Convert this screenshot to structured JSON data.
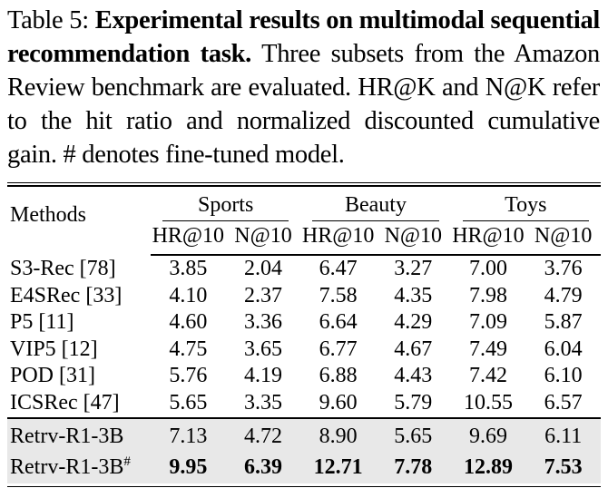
{
  "caption": {
    "label": "Table 5:",
    "bold_text": "Experimental results on multimodal sequential recommendation task.",
    "body_text": "Three subsets from the Amazon Review benchmark are evaluated. HR@K and N@K refer to the hit ratio and normalized discounted cumulative gain. # denotes fine-tuned model."
  },
  "table": {
    "methods_header": "Methods",
    "groups": [
      {
        "label": "Sports"
      },
      {
        "label": "Beauty"
      },
      {
        "label": "Toys"
      }
    ],
    "metric_headers": [
      "HR@10",
      "N@10",
      "HR@10",
      "N@10",
      "HR@10",
      "N@10"
    ],
    "rows": [
      {
        "method": "S3-Rec [78]",
        "values": [
          "3.85",
          "2.04",
          "6.47",
          "3.27",
          "7.00",
          "3.76"
        ]
      },
      {
        "method": "E4SRec [33]",
        "values": [
          "4.10",
          "2.37",
          "7.58",
          "4.35",
          "7.98",
          "4.79"
        ]
      },
      {
        "method": "P5 [11]",
        "values": [
          "4.60",
          "3.36",
          "6.64",
          "4.29",
          "7.09",
          "5.87"
        ]
      },
      {
        "method": "VIP5 [12]",
        "values": [
          "4.75",
          "3.65",
          "6.77",
          "4.67",
          "7.49",
          "6.04"
        ]
      },
      {
        "method": "POD [31]",
        "values": [
          "5.76",
          "4.19",
          "6.88",
          "4.43",
          "7.42",
          "6.10"
        ]
      },
      {
        "method": "ICSRec [47]",
        "values": [
          "5.65",
          "3.35",
          "9.60",
          "5.79",
          "10.55",
          "6.57"
        ]
      }
    ],
    "highlight_rows": [
      {
        "method": "Retrv-R1-3B",
        "superscript": "",
        "bold": false,
        "values": [
          "7.13",
          "4.72",
          "8.90",
          "5.65",
          "9.69",
          "6.11"
        ]
      },
      {
        "method": "Retrv-R1-3B",
        "superscript": "#",
        "bold": true,
        "values": [
          "9.95",
          "6.39",
          "12.71",
          "7.78",
          "12.89",
          "7.53"
        ]
      }
    ],
    "highlight_color": "#e8e8e8",
    "rule_color": "#000000"
  }
}
